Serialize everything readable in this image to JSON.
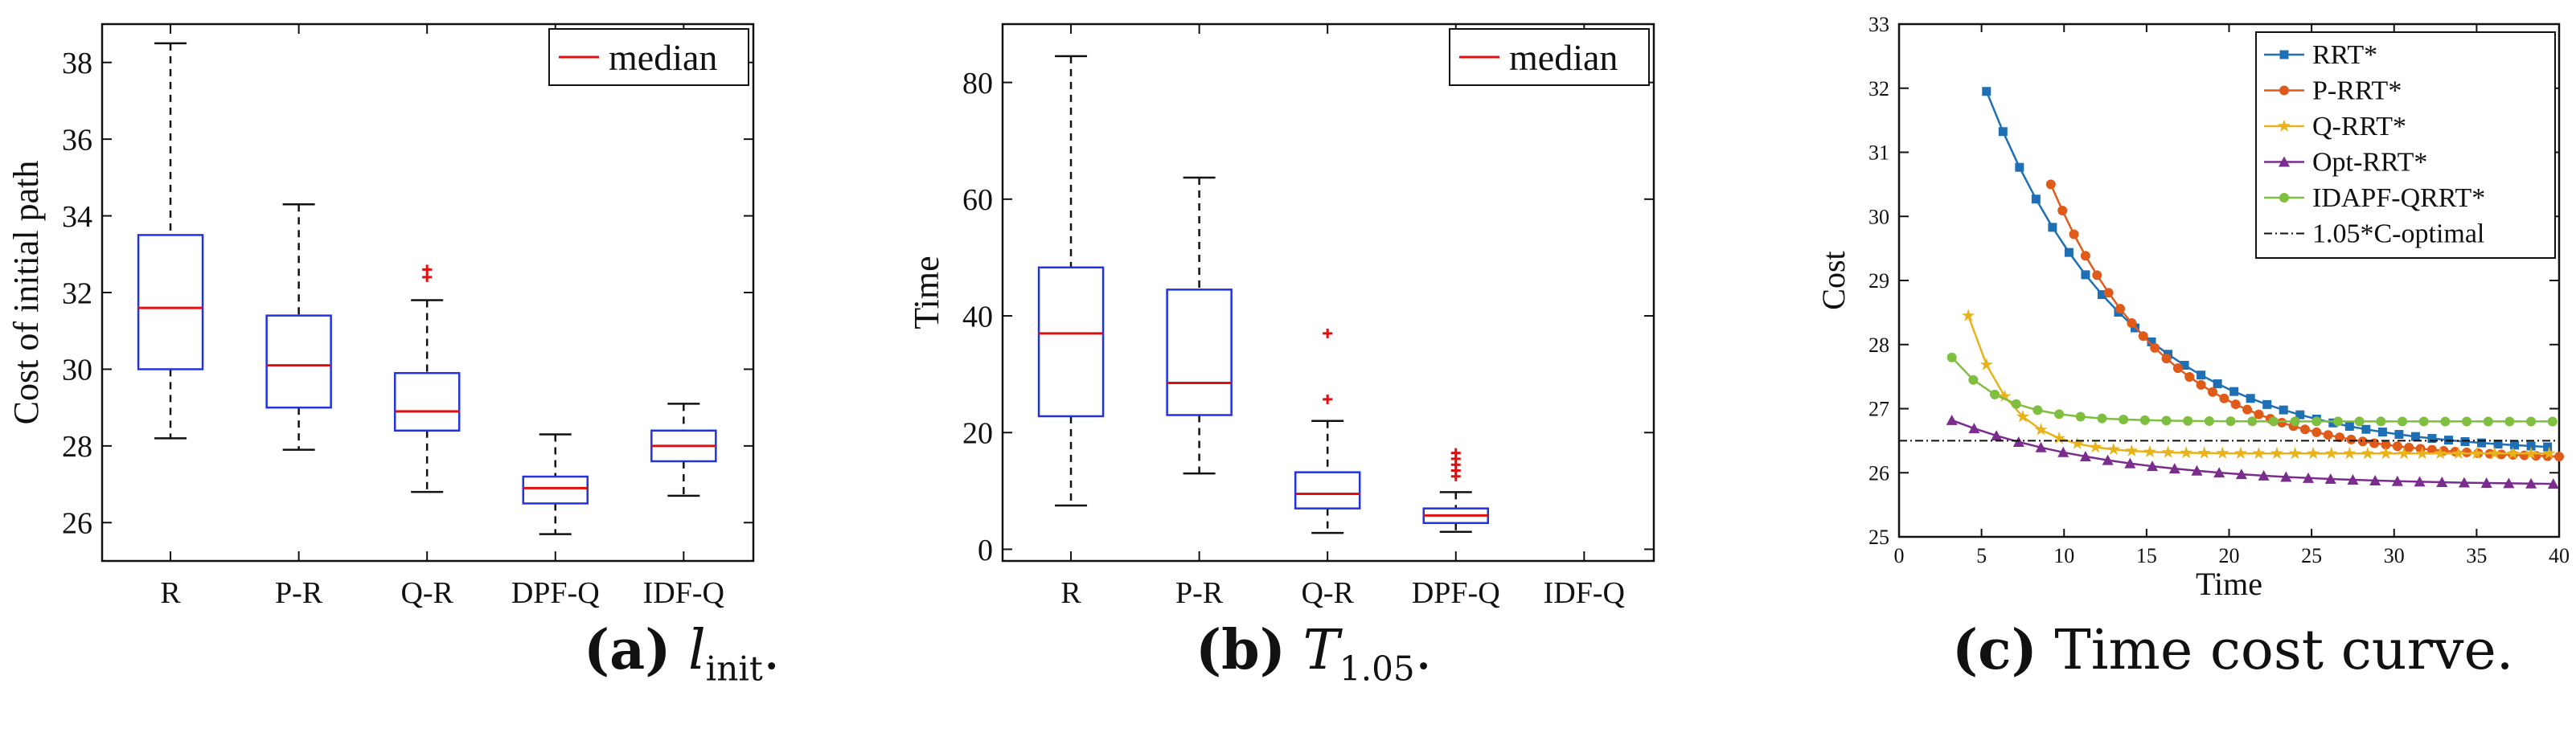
{
  "chart_data": [
    {
      "type": "box",
      "categories": [
        "R",
        "P-R",
        "Q-R",
        "DPF-Q",
        "IDF-Q"
      ],
      "ylabel": "Cost of initial path",
      "ylim": [
        25,
        39
      ],
      "yticks": [
        26,
        28,
        30,
        32,
        34,
        36,
        38
      ],
      "legend": {
        "entries": [
          "median"
        ],
        "placement": "top-right"
      },
      "boxes": [
        {
          "min": 28.2,
          "q1": 30.0,
          "median": 31.6,
          "q3": 33.5,
          "max": 38.5,
          "outliers": []
        },
        {
          "min": 27.9,
          "q1": 29.0,
          "median": 30.1,
          "q3": 31.4,
          "max": 34.3,
          "outliers": []
        },
        {
          "min": 26.8,
          "q1": 28.4,
          "median": 28.9,
          "q3": 29.9,
          "max": 31.8,
          "outliers": [
            32.4,
            32.6
          ]
        },
        {
          "min": 25.7,
          "q1": 26.5,
          "median": 26.9,
          "q3": 27.2,
          "max": 28.3,
          "outliers": []
        },
        {
          "min": 26.7,
          "q1": 27.6,
          "median": 28.0,
          "q3": 28.4,
          "max": 29.1,
          "outliers": []
        }
      ],
      "caption": {
        "label": "(a)",
        "sym": "l",
        "sub": "init",
        "end": "."
      }
    },
    {
      "type": "box",
      "categories": [
        "R",
        "P-R",
        "Q-R",
        "DPF-Q",
        "IDF-Q"
      ],
      "ylabel": "Time",
      "ylim": [
        -2,
        90
      ],
      "yticks": [
        0,
        20,
        40,
        60,
        80
      ],
      "legend": {
        "entries": [
          "median"
        ],
        "placement": "top-right"
      },
      "boxes": [
        {
          "min": 7.5,
          "q1": 22.8,
          "median": 37.0,
          "q3": 48.3,
          "max": 84.5,
          "outliers": []
        },
        {
          "min": 13.0,
          "q1": 23.0,
          "median": 28.5,
          "q3": 44.5,
          "max": 63.7,
          "outliers": []
        },
        {
          "min": 2.8,
          "q1": 7.0,
          "median": 9.5,
          "q3": 13.2,
          "max": 22.0,
          "outliers": [
            25.7,
            37.0
          ]
        },
        {
          "min": 3.0,
          "q1": 4.5,
          "median": 5.8,
          "q3": 7.0,
          "max": 9.8,
          "outliers": [
            12.5,
            13.5,
            14.5,
            15.5,
            16.5
          ]
        },
        null
      ],
      "caption": {
        "label": "(b)",
        "sym": "T",
        "sub": "1.05",
        "end": "."
      }
    },
    {
      "type": "line",
      "xlabel": "Time",
      "ylabel": "Cost",
      "xlim": [
        0,
        40
      ],
      "ylim": [
        25,
        33
      ],
      "xticks": [
        0,
        5,
        10,
        15,
        20,
        25,
        30,
        35,
        40
      ],
      "yticks": [
        25,
        26,
        27,
        28,
        29,
        30,
        31,
        32,
        33
      ],
      "legend": {
        "placement": "top-right"
      },
      "series": [
        {
          "name": "RRT*",
          "color": "#1f6fb5",
          "marker": "square",
          "x0": 5.3,
          "y0": 31.95,
          "asym": 26.3,
          "tau": 8.5,
          "xend": 40,
          "step": 1.0
        },
        {
          "name": "P-RRT*",
          "color": "#e05a1a",
          "marker": "dot",
          "x0": 9.2,
          "y0": 30.5,
          "asym": 26.2,
          "tau": 7.0,
          "xend": 40,
          "step": 0.7
        },
        {
          "name": "Q-RRT*",
          "color": "#e8b21a",
          "marker": "star",
          "x0": 4.2,
          "y0": 28.45,
          "asym": 26.3,
          "tau": 2.5,
          "xend": 40,
          "step": 1.1
        },
        {
          "name": "Opt-RRT*",
          "color": "#7b2d8e",
          "marker": "triangle",
          "x0": 3.2,
          "y0": 26.82,
          "asym": 25.8,
          "tau": 10.0,
          "xend": 40,
          "step": 1.35
        },
        {
          "name": "IDAPF-QRRT*",
          "color": "#7fbf3f",
          "marker": "dot",
          "x0": 3.2,
          "y0": 27.8,
          "asym": 26.8,
          "tau": 3.0,
          "xend": 40,
          "step": 1.3
        },
        {
          "name": "1.05*C-optimal",
          "color": "#111111",
          "marker": "none",
          "style": "dashdot",
          "constant": 26.5
        }
      ],
      "caption": {
        "label": "(c)",
        "text": "Time cost curve."
      }
    }
  ]
}
